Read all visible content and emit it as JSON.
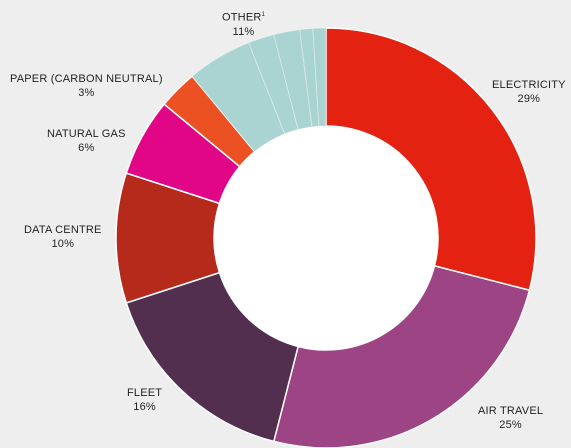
{
  "chart_data": {
    "type": "pie",
    "donut": true,
    "slices": [
      {
        "label": "ELECTRICITY",
        "percent_label": "29%",
        "value": 29,
        "color": "#e32212"
      },
      {
        "label": "AIR TRAVEL",
        "percent_label": "25%",
        "value": 25,
        "color": "#9d4484"
      },
      {
        "label": "FLEET",
        "percent_label": "16%",
        "value": 16,
        "color": "#522e4f"
      },
      {
        "label": "DATA CENTRE",
        "percent_label": "10%",
        "value": 10,
        "color": "#b52a1b"
      },
      {
        "label": "NATURAL GAS",
        "percent_label": "6%",
        "value": 6,
        "color": "#e00685"
      },
      {
        "label": "PAPER (CARBON NEUTRAL)",
        "percent_label": "3%",
        "value": 3,
        "color": "#ec5124"
      },
      {
        "label": "OTHER",
        "footnote": "1",
        "percent_label": "11%",
        "value": 11,
        "color": "#a9d4d2",
        "sub_values": [
          5,
          2,
          2,
          1,
          1
        ]
      }
    ]
  }
}
